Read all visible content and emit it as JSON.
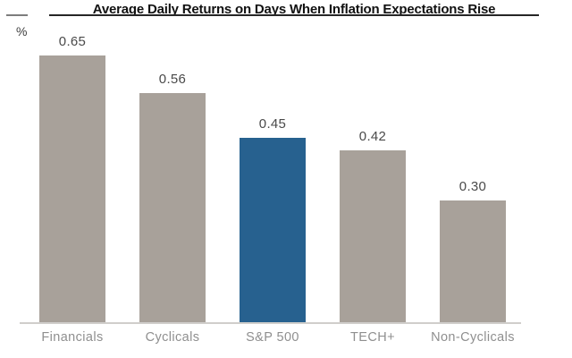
{
  "chart_data": {
    "type": "bar",
    "title": "Average Daily Returns on Days When Inflation Expectations Rise",
    "ylabel": "%",
    "xlabel": "",
    "categories": [
      "Financials",
      "Cyclicals",
      "S&P 500",
      "TECH+",
      "Non-Cyclicals"
    ],
    "values": [
      0.65,
      0.56,
      0.45,
      0.42,
      0.3
    ],
    "value_labels": [
      "0.65",
      "0.56",
      "0.45",
      "0.42",
      "0.30"
    ],
    "highlight_index": 2,
    "highlighted_category": "S&P 500",
    "ylim": [
      0,
      0.7
    ],
    "grid": false,
    "legend": "none",
    "colors": {
      "bar": "#a8a19a",
      "highlight": "#27618f",
      "value_label": "#4a4a4a",
      "category_label": "#8f8f8f",
      "title": "#111111",
      "baseline": "#d0cecb",
      "title_rule": "#262626"
    }
  }
}
